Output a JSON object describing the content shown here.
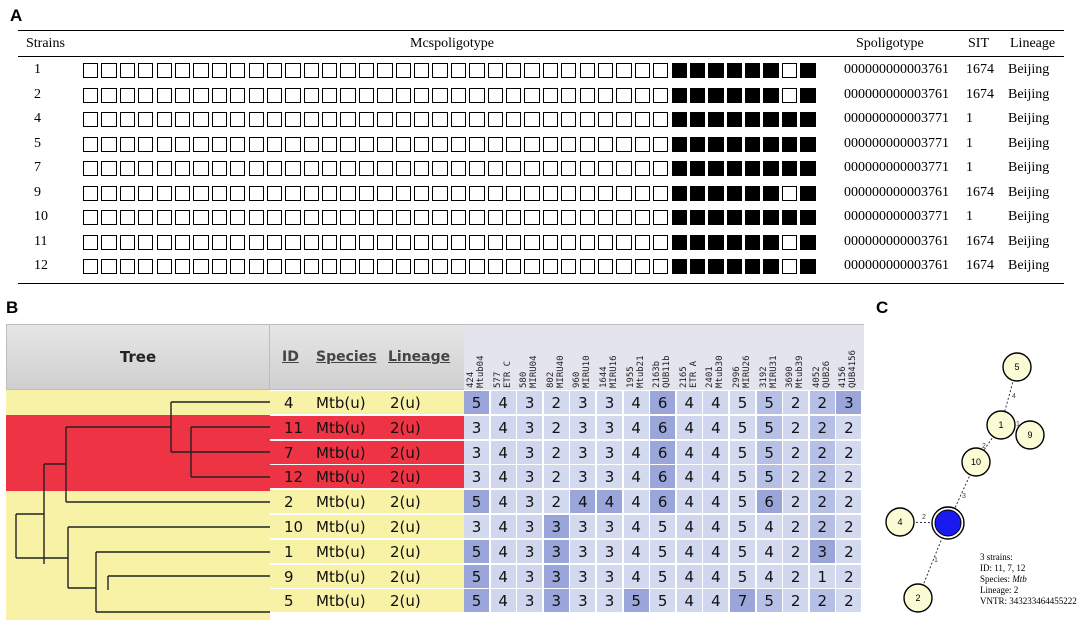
{
  "panel_labels": {
    "a": "A",
    "b": "B",
    "c": "C"
  },
  "panel_a": {
    "headers": {
      "strains": "Strains",
      "mcspoligotype": "Mcspoligotype",
      "spoligotype": "Spoligotype",
      "sit": "SIT",
      "lineage": "Lineage"
    },
    "rows": [
      {
        "strain": "1",
        "pattern": "0000000000000000000000000000000011111101",
        "spoligotype": "000000000003761",
        "sit": "1674",
        "lineage": "Beijing"
      },
      {
        "strain": "2",
        "pattern": "0000000000000000000000000000000011111101",
        "spoligotype": "000000000003761",
        "sit": "1674",
        "lineage": "Beijing"
      },
      {
        "strain": "4",
        "pattern": "0000000000000000000000000000000011111111",
        "spoligotype": "000000000003771",
        "sit": "1",
        "lineage": "Beijing"
      },
      {
        "strain": "5",
        "pattern": "0000000000000000000000000000000011111111",
        "spoligotype": "000000000003771",
        "sit": "1",
        "lineage": "Beijing"
      },
      {
        "strain": "7",
        "pattern": "0000000000000000000000000000000011111111",
        "spoligotype": "000000000003771",
        "sit": "1",
        "lineage": "Beijing"
      },
      {
        "strain": "9",
        "pattern": "0000000000000000000000000000000011111101",
        "spoligotype": "000000000003761",
        "sit": "1674",
        "lineage": "Beijing"
      },
      {
        "strain": "10",
        "pattern": "0000000000000000000000000000000011111111",
        "spoligotype": "000000000003771",
        "sit": "1",
        "lineage": "Beijing"
      },
      {
        "strain": "11",
        "pattern": "0000000000000000000000000000000011111101",
        "spoligotype": "000000000003761",
        "sit": "1674",
        "lineage": "Beijing"
      },
      {
        "strain": "12",
        "pattern": "0000000000000000000000000000000011111101",
        "spoligotype": "000000000003761",
        "sit": "1674",
        "lineage": "Beijing"
      }
    ]
  },
  "panel_b": {
    "headers": {
      "tree": "Tree",
      "id": "ID",
      "species": "Species",
      "lineage": "Lineage"
    },
    "loci": [
      [
        "424",
        "Mtub04"
      ],
      [
        "577",
        "ETR C"
      ],
      [
        "580",
        "MIRU04"
      ],
      [
        "802",
        "MIRU40"
      ],
      [
        "960",
        "MIRU10"
      ],
      [
        "1644",
        "MIRU16"
      ],
      [
        "1955",
        "Mtub21"
      ],
      [
        "2163b",
        "QUB11b"
      ],
      [
        "2165",
        "ETR A"
      ],
      [
        "2401",
        "Mtub30"
      ],
      [
        "2996",
        "MIRU26"
      ],
      [
        "3192",
        "MIRU31"
      ],
      [
        "3690",
        "Mtub39"
      ],
      [
        "4052",
        "QUB26"
      ],
      [
        "4156",
        "QUB4156"
      ]
    ],
    "rows": [
      {
        "id": "4",
        "species": "Mtb(u)",
        "lineage": "2(u)",
        "highlight": false,
        "values": [
          5,
          4,
          3,
          2,
          3,
          3,
          4,
          6,
          4,
          4,
          5,
          5,
          2,
          2,
          3
        ]
      },
      {
        "id": "11",
        "species": "Mtb(u)",
        "lineage": "2(u)",
        "highlight": true,
        "values": [
          3,
          4,
          3,
          2,
          3,
          3,
          4,
          6,
          4,
          4,
          5,
          5,
          2,
          2,
          2
        ]
      },
      {
        "id": "7",
        "species": "Mtb(u)",
        "lineage": "2(u)",
        "highlight": true,
        "values": [
          3,
          4,
          3,
          2,
          3,
          3,
          4,
          6,
          4,
          4,
          5,
          5,
          2,
          2,
          2
        ]
      },
      {
        "id": "12",
        "species": "Mtb(u)",
        "lineage": "2(u)",
        "highlight": true,
        "values": [
          3,
          4,
          3,
          2,
          3,
          3,
          4,
          6,
          4,
          4,
          5,
          5,
          2,
          2,
          2
        ]
      },
      {
        "id": "2",
        "species": "Mtb(u)",
        "lineage": "2(u)",
        "highlight": false,
        "values": [
          5,
          4,
          3,
          2,
          4,
          4,
          4,
          6,
          4,
          4,
          5,
          6,
          2,
          2,
          2
        ]
      },
      {
        "id": "10",
        "species": "Mtb(u)",
        "lineage": "2(u)",
        "highlight": false,
        "values": [
          3,
          4,
          3,
          3,
          3,
          3,
          4,
          5,
          4,
          4,
          5,
          4,
          2,
          2,
          2
        ]
      },
      {
        "id": "1",
        "species": "Mtb(u)",
        "lineage": "2(u)",
        "highlight": false,
        "values": [
          5,
          4,
          3,
          3,
          3,
          3,
          4,
          5,
          4,
          4,
          5,
          4,
          2,
          3,
          2
        ]
      },
      {
        "id": "9",
        "species": "Mtb(u)",
        "lineage": "2(u)",
        "highlight": false,
        "values": [
          5,
          4,
          3,
          3,
          3,
          3,
          4,
          5,
          4,
          4,
          5,
          4,
          2,
          1,
          2
        ]
      },
      {
        "id": "5",
        "species": "Mtb(u)",
        "lineage": "2(u)",
        "highlight": false,
        "values": [
          5,
          4,
          3,
          3,
          3,
          3,
          5,
          5,
          4,
          4,
          7,
          5,
          2,
          2,
          2
        ]
      }
    ],
    "colors": {
      "highlight": "#ee3344",
      "tree_bg": "#f7f2a6",
      "cell_light": "#dbe0f2",
      "cell_dark": "#8e9ad6"
    }
  },
  "panel_c": {
    "nodes": [
      {
        "label": "5"
      },
      {
        "label": "1"
      },
      {
        "label": "9"
      },
      {
        "label": "10"
      },
      {
        "label": "4"
      },
      {
        "label": "2"
      }
    ],
    "edge_labels": [
      "4",
      "1",
      "2",
      "3",
      "2",
      "1"
    ],
    "legend": {
      "strains": "3 strains:",
      "id": "ID: 11, 7, 12",
      "species_prefix": "Species: ",
      "species": "Mtb",
      "lineage": "Lineage:  2",
      "vntr": "VNTR: 343233464455222"
    },
    "colors": {
      "center": "#1a1aee",
      "node_fill": "#fbfbd6"
    }
  }
}
